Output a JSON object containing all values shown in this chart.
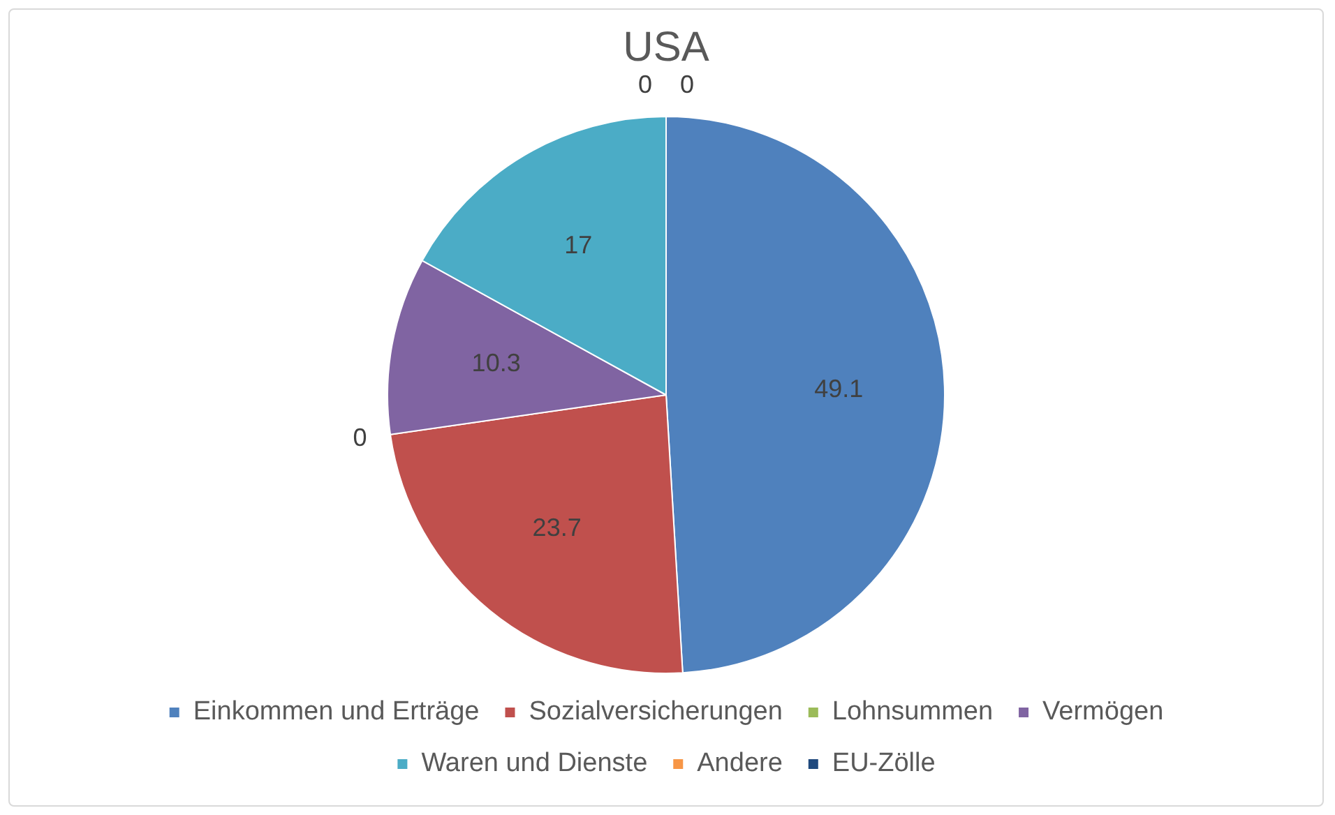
{
  "chart_data": {
    "type": "pie",
    "title": "USA",
    "categories": [
      "Einkommen und Erträge",
      "Sozialversicherungen",
      "Lohnsummen",
      "Vermögen",
      "Waren und Dienste",
      "Andere",
      "EU-Zölle"
    ],
    "values": [
      49.1,
      23.7,
      0,
      10.3,
      17,
      0,
      0
    ],
    "colors": [
      "#4f81bd",
      "#c0504d",
      "#9bbb59",
      "#8064a2",
      "#4bacc6",
      "#f79646",
      "#1f497d"
    ],
    "value_labels": [
      "49.1",
      "23.7",
      "0",
      "10.3",
      "17",
      "0",
      "0"
    ],
    "legend": "bottom"
  }
}
